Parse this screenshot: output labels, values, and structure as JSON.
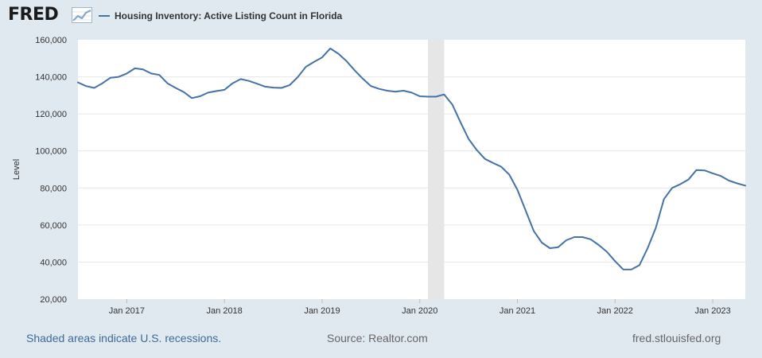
{
  "header": {
    "logo_text": "FRED",
    "logo_icon": "trend-graph-icon",
    "legend_label": "Housing Inventory: Active Listing Count in Florida"
  },
  "footer": {
    "recession_note": "Shaded areas indicate U.S. recessions.",
    "source": "Source: Realtor.com",
    "url": "fred.stlouisfed.org"
  },
  "colors": {
    "background": "#e1e9f0",
    "plot_background": "#ffffff",
    "line": "#4572a7",
    "recession_shade": "#e6e6e6",
    "grid": "#e6e6e6"
  },
  "chart_data": {
    "type": "line",
    "title": "",
    "xlabel": "",
    "ylabel": "Level",
    "ylim": [
      20000,
      160000
    ],
    "y_ticks": [
      20000,
      40000,
      60000,
      80000,
      100000,
      120000,
      140000,
      160000
    ],
    "y_tick_labels": [
      "20,000",
      "40,000",
      "60,000",
      "80,000",
      "100,000",
      "120,000",
      "140,000",
      "160,000"
    ],
    "x_range": [
      "2016-07",
      "2023-05"
    ],
    "x_ticks": [
      "2017-01",
      "2018-01",
      "2019-01",
      "2020-01",
      "2021-01",
      "2022-01",
      "2023-01"
    ],
    "x_tick_labels": [
      "Jan 2017",
      "Jan 2018",
      "Jan 2019",
      "Jan 2020",
      "Jan 2021",
      "Jan 2022",
      "Jan 2023"
    ],
    "grid": "horizontal",
    "recessions": [
      {
        "start": "2020-02",
        "end": "2020-04"
      }
    ],
    "series": [
      {
        "name": "Housing Inventory: Active Listing Count in Florida",
        "x": [
          "2016-07",
          "2016-08",
          "2016-09",
          "2016-10",
          "2016-11",
          "2016-12",
          "2017-01",
          "2017-02",
          "2017-03",
          "2017-04",
          "2017-05",
          "2017-06",
          "2017-07",
          "2017-08",
          "2017-09",
          "2017-10",
          "2017-11",
          "2017-12",
          "2018-01",
          "2018-02",
          "2018-03",
          "2018-04",
          "2018-05",
          "2018-06",
          "2018-07",
          "2018-08",
          "2018-09",
          "2018-10",
          "2018-11",
          "2018-12",
          "2019-01",
          "2019-02",
          "2019-03",
          "2019-04",
          "2019-05",
          "2019-06",
          "2019-07",
          "2019-08",
          "2019-09",
          "2019-10",
          "2019-11",
          "2019-12",
          "2020-01",
          "2020-02",
          "2020-03",
          "2020-04",
          "2020-05",
          "2020-06",
          "2020-07",
          "2020-08",
          "2020-09",
          "2020-10",
          "2020-11",
          "2020-12",
          "2021-01",
          "2021-02",
          "2021-03",
          "2021-04",
          "2021-05",
          "2021-06",
          "2021-07",
          "2021-08",
          "2021-09",
          "2021-10",
          "2021-11",
          "2021-12",
          "2022-01",
          "2022-02",
          "2022-03",
          "2022-04",
          "2022-05",
          "2022-06",
          "2022-07",
          "2022-08",
          "2022-09",
          "2022-10",
          "2022-11",
          "2022-12",
          "2023-01",
          "2023-02",
          "2023-03",
          "2023-04",
          "2023-05"
        ],
        "values": [
          137000,
          135000,
          134000,
          136500,
          139500,
          140000,
          141800,
          144600,
          144000,
          141800,
          141000,
          136500,
          134000,
          131800,
          128500,
          129500,
          131500,
          132300,
          133000,
          136500,
          138800,
          137800,
          136300,
          134700,
          134200,
          134000,
          135500,
          139800,
          145400,
          148000,
          150500,
          155300,
          152500,
          148500,
          143500,
          139000,
          135000,
          133500,
          132500,
          132000,
          132500,
          131500,
          129500,
          129300,
          129300,
          130500,
          125000,
          115500,
          106500,
          100500,
          95700,
          93500,
          91500,
          87200,
          79000,
          68000,
          56800,
          50500,
          47500,
          48000,
          51800,
          53500,
          53500,
          52300,
          49200,
          45500,
          40500,
          36000,
          36000,
          38400,
          47500,
          58500,
          74000,
          80000,
          82000,
          84500,
          89700,
          89500,
          87900,
          86500,
          84000,
          82500,
          81300
        ]
      }
    ]
  }
}
